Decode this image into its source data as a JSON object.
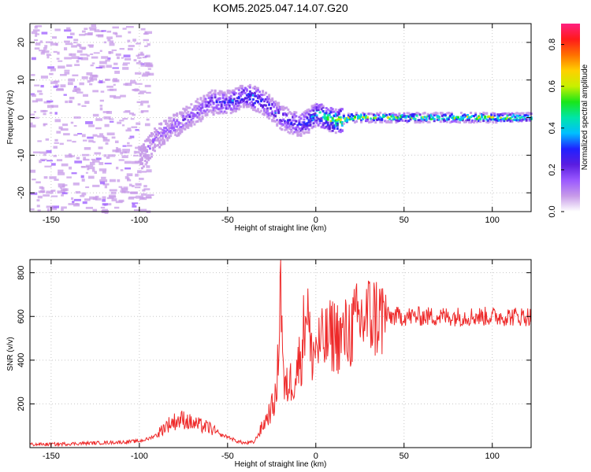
{
  "title": "KOM5.2025.047.14.07.G20",
  "colors": {
    "snr_line": "#ee2a2a",
    "colormap": [
      "#ffffff",
      "#c79be8",
      "#9b59ff",
      "#5a1de0",
      "#2020ff",
      "#00bfff",
      "#00e5a8",
      "#19e619",
      "#c8f000",
      "#ffd000",
      "#ff7000",
      "#ff1a1a",
      "#ff2080"
    ]
  },
  "chart_data": [
    {
      "type": "heatmap",
      "xlabel": "Height of straight line (km)",
      "ylabel": "Frequency (Hz)",
      "xlim": [
        -162,
        122
      ],
      "ylim": [
        -25,
        25
      ],
      "xticks": [
        -150,
        -100,
        -50,
        0,
        50,
        100
      ],
      "xtick_labels": [
        "-150",
        "-100",
        "-50",
        "0",
        "50",
        "100"
      ],
      "yticks": [
        -20,
        -10,
        0,
        10,
        20
      ],
      "ytick_labels": [
        "-20",
        "-10",
        "0",
        "10",
        "20"
      ],
      "grid": true,
      "colorbar": {
        "label": "Normalized spectral amplitude",
        "ticks": [
          0.0,
          0.2,
          0.4,
          0.6,
          0.8
        ],
        "tick_labels": [
          "0.0",
          "0.2",
          "0.4",
          "0.6",
          "0.8"
        ],
        "range": [
          0,
          0.9
        ]
      },
      "ridge": {
        "x": [
          -100,
          -90,
          -80,
          -70,
          -60,
          -50,
          -40,
          -35,
          -30,
          -20,
          -15,
          -10,
          -5,
          0,
          5,
          10,
          15,
          20,
          30,
          40,
          50,
          60,
          70,
          80,
          90,
          100,
          110,
          122
        ],
        "frequency": [
          -11,
          -5,
          -2,
          1,
          4,
          4,
          6,
          5,
          4,
          0,
          -1,
          -2,
          -1,
          1,
          0,
          -1,
          -0.5,
          0,
          0,
          0,
          0,
          0,
          0,
          0,
          0,
          0,
          0,
          0
        ],
        "amplitude": [
          0.12,
          0.15,
          0.18,
          0.2,
          0.25,
          0.3,
          0.35,
          0.38,
          0.3,
          0.3,
          0.28,
          0.3,
          0.35,
          0.45,
          0.5,
          0.6,
          0.65,
          0.7,
          0.55,
          0.6,
          0.55,
          0.6,
          0.55,
          0.6,
          0.62,
          0.7,
          0.6,
          0.55
        ]
      }
    },
    {
      "type": "line",
      "xlabel": "Height of straight line (km)",
      "ylabel": "SNR (v/v)",
      "xlim": [
        -162,
        122
      ],
      "ylim": [
        0,
        860
      ],
      "xticks": [
        -150,
        -100,
        -50,
        0,
        50,
        100
      ],
      "xtick_labels": [
        "-150",
        "-100",
        "-50",
        "0",
        "50",
        "100"
      ],
      "yticks": [
        200,
        400,
        600,
        800
      ],
      "ytick_labels": [
        "200",
        "400",
        "600",
        "800"
      ],
      "grid": true,
      "series": [
        {
          "x": [
            -162,
            -150,
            -130,
            -110,
            -100,
            -95,
            -90,
            -85,
            -80,
            -75,
            -70,
            -65,
            -60,
            -55,
            -50,
            -45,
            -40,
            -35,
            -30,
            -25,
            -22,
            -20,
            -18,
            -15,
            -12,
            -10,
            -8,
            -5,
            -3,
            0,
            5,
            10,
            15,
            20,
            25,
            30,
            35,
            40,
            50,
            60,
            70,
            80,
            90,
            100,
            110,
            122
          ],
          "y": [
            15,
            15,
            20,
            25,
            30,
            40,
            60,
            100,
            120,
            130,
            110,
            100,
            90,
            60,
            50,
            30,
            20,
            25,
            100,
            180,
            250,
            840,
            250,
            300,
            320,
            380,
            440,
            700,
            420,
            460,
            480,
            520,
            500,
            540,
            580,
            600,
            600,
            600,
            600,
            600,
            600,
            600,
            600,
            600,
            600,
            600
          ]
        }
      ]
    }
  ]
}
